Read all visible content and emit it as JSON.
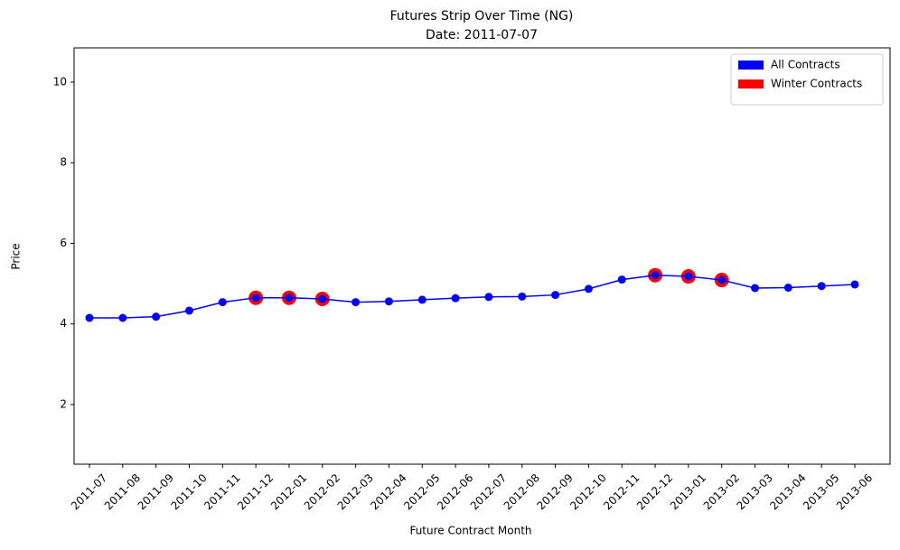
{
  "chart_data": {
    "type": "line",
    "title": "Futures Strip Over Time (NG)",
    "subtitle": "Date: 2011-07-07",
    "xlabel": "Future Contract Month",
    "ylabel": "Price",
    "categories": [
      "2011-07",
      "2011-08",
      "2011-09",
      "2011-10",
      "2011-11",
      "2011-12",
      "2012-01",
      "2012-02",
      "2012-03",
      "2012-04",
      "2012-05",
      "2012-06",
      "2012-07",
      "2012-08",
      "2012-09",
      "2012-10",
      "2012-11",
      "2012-12",
      "2013-01",
      "2013-02",
      "2013-03",
      "2013-04",
      "2013-05",
      "2013-06"
    ],
    "series": [
      {
        "name": "All Contracts",
        "color": "#0000ff",
        "line": true,
        "values": [
          4.15,
          4.15,
          4.18,
          4.33,
          4.54,
          4.65,
          4.65,
          4.62,
          4.54,
          4.56,
          4.6,
          4.64,
          4.67,
          4.68,
          4.72,
          4.87,
          5.1,
          5.21,
          5.18,
          5.09,
          4.89,
          4.9,
          4.94,
          4.98
        ]
      },
      {
        "name": "Winter Contracts",
        "color": "#ff0000",
        "line": false,
        "values": [
          null,
          null,
          null,
          null,
          null,
          4.65,
          4.65,
          4.62,
          null,
          null,
          null,
          null,
          null,
          null,
          null,
          null,
          null,
          5.21,
          5.18,
          5.09,
          null,
          null,
          null,
          null
        ]
      }
    ],
    "ylim": [
      0.52,
      10.85
    ],
    "yticks": [
      2,
      4,
      6,
      8,
      10
    ],
    "grid": false,
    "legend": "upper right"
  }
}
